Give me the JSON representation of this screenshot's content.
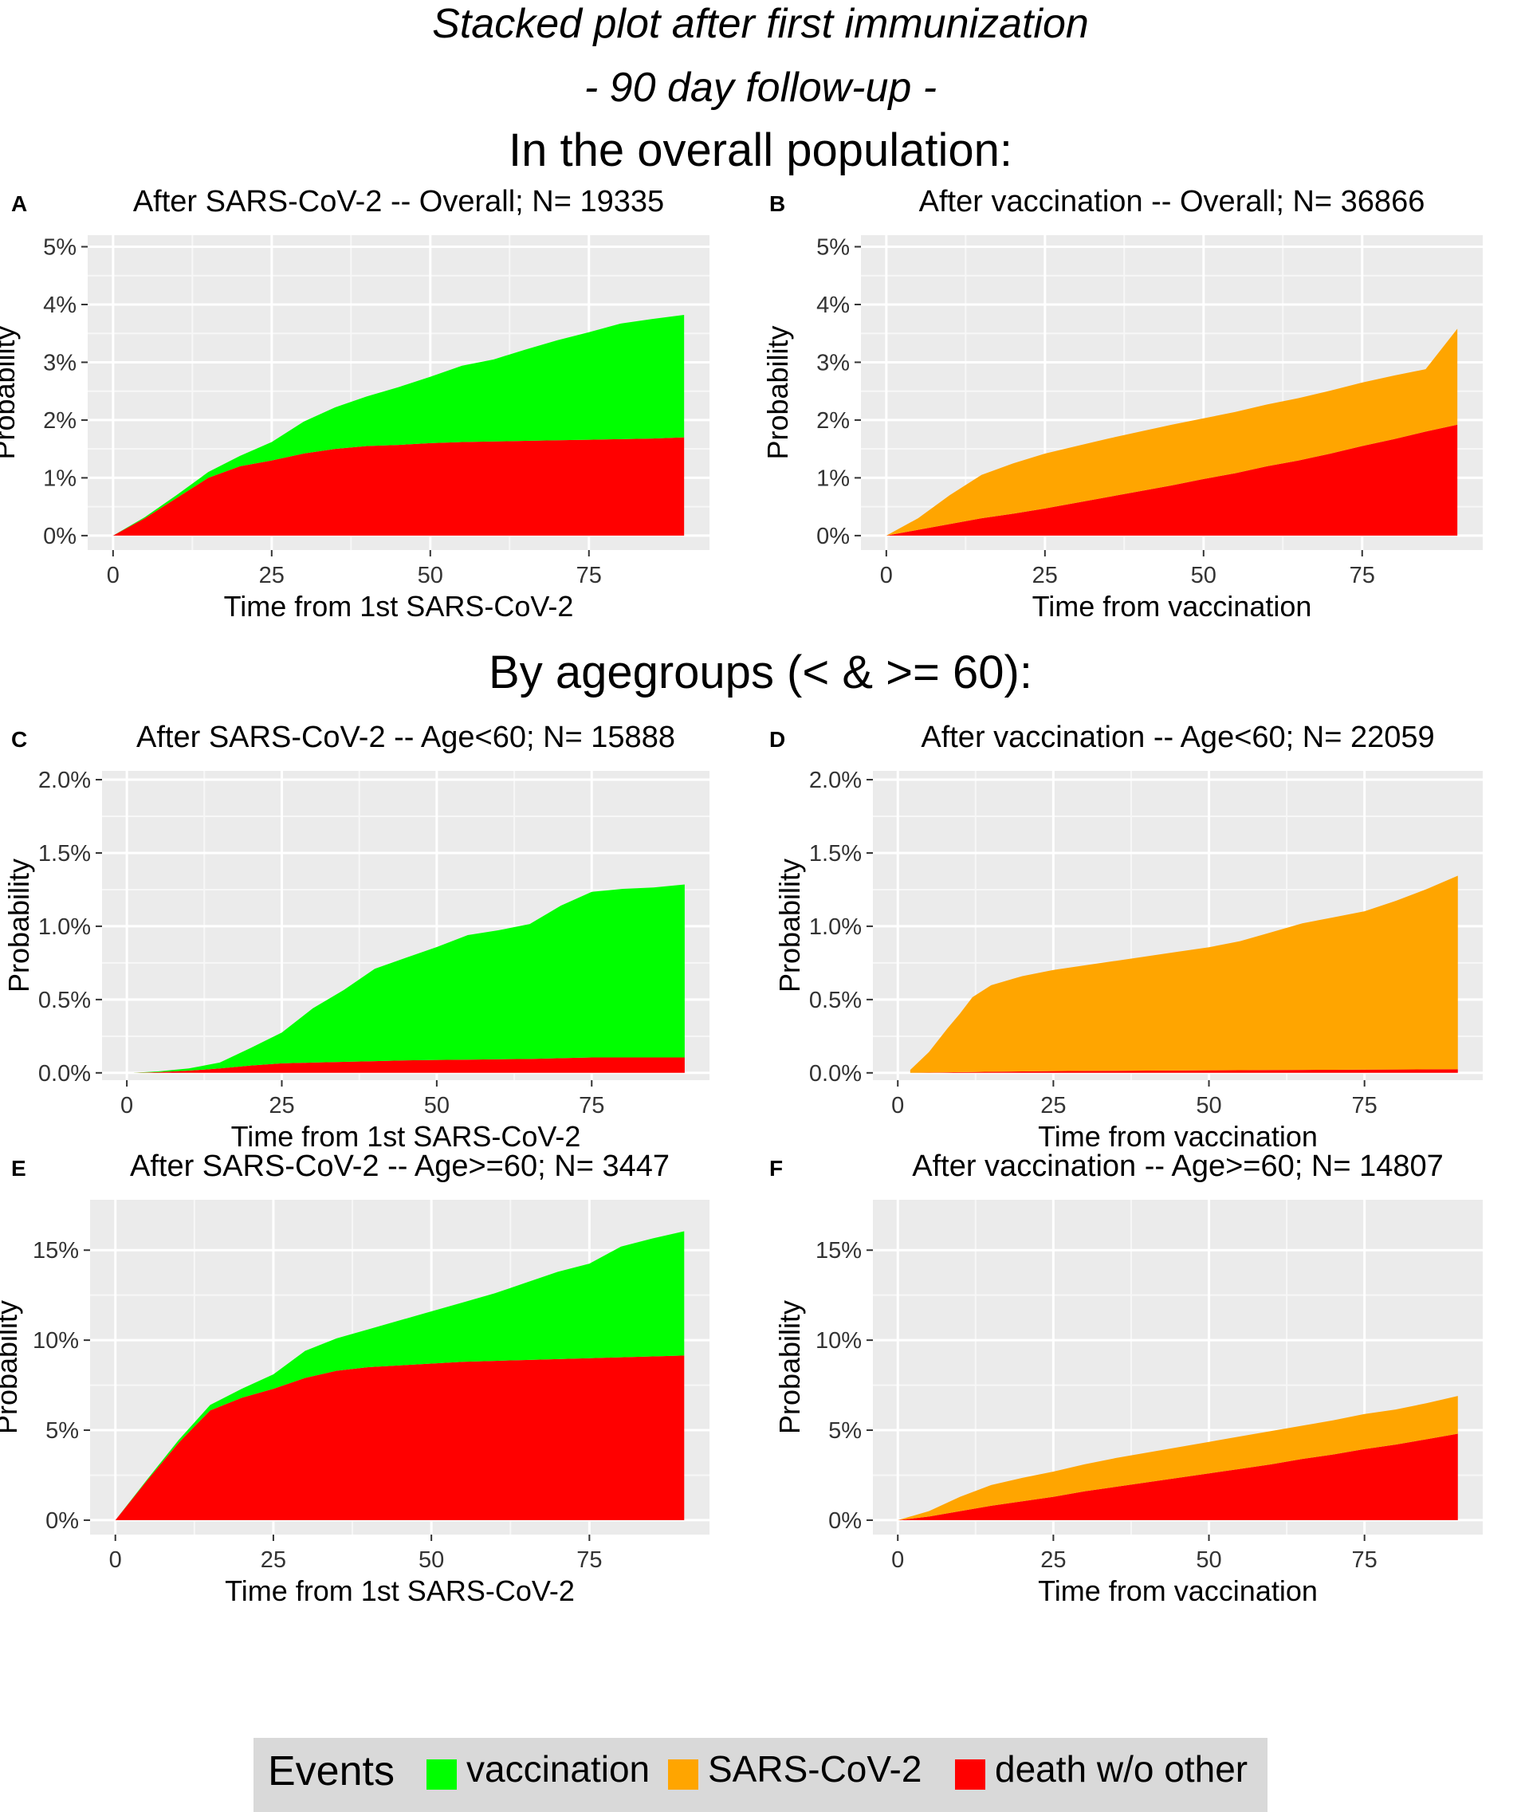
{
  "header": {
    "title": "Stacked plot after first immunization",
    "subtitle": "- 90 day follow-up -",
    "section_overall": "In the overall population:",
    "section_age": "By agegroups (< & >= 60):"
  },
  "colors": {
    "vaccination": "#00ff00",
    "sars_cov_2": "#ffa500",
    "death": "#ff0000",
    "panel_bg": "#ebebeb",
    "grid": "#ffffff"
  },
  "legend": {
    "title": "Events",
    "items": [
      {
        "label": "vaccination",
        "color": "#00ff00"
      },
      {
        "label": "SARS-CoV-2",
        "color": "#ffa500"
      },
      {
        "label": "death w/o other",
        "color": "#ff0000"
      }
    ]
  },
  "chart_data": [
    {
      "type": "area",
      "stacked": true,
      "panel": "A",
      "title": "After SARS-CoV-2 -- Overall; N= 19335",
      "xlabel": "Time from 1st SARS-CoV-2",
      "ylabel": "Probability",
      "xlim": [
        -4,
        94
      ],
      "ylim": [
        -0.25,
        5.2
      ],
      "xticks": [
        0,
        25,
        50,
        75
      ],
      "yticks": [
        0,
        1,
        2,
        3,
        4,
        5
      ],
      "ytick_labels": [
        "0%",
        "1%",
        "2%",
        "3%",
        "4%",
        "5%"
      ],
      "x": [
        0,
        5,
        10,
        15,
        20,
        25,
        30,
        35,
        40,
        45,
        50,
        55,
        60,
        65,
        70,
        75,
        80,
        85,
        90
      ],
      "series": [
        {
          "name": "death w/o other",
          "color": "#ff0000",
          "values": [
            0,
            0.3,
            0.65,
            1.0,
            1.2,
            1.3,
            1.42,
            1.5,
            1.55,
            1.57,
            1.6,
            1.62,
            1.63,
            1.64,
            1.65,
            1.66,
            1.67,
            1.68,
            1.7
          ]
        },
        {
          "name": "vaccination",
          "color": "#00ff00",
          "values": [
            0,
            0.02,
            0.05,
            0.1,
            0.18,
            0.32,
            0.55,
            0.72,
            0.86,
            1.0,
            1.15,
            1.32,
            1.42,
            1.58,
            1.73,
            1.86,
            2.0,
            2.07,
            2.12
          ]
        }
      ]
    },
    {
      "type": "area",
      "stacked": true,
      "panel": "B",
      "title": "After vaccination -- Overall; N= 36866",
      "xlabel": "Time from vaccination",
      "ylabel": "Probability",
      "xlim": [
        -4,
        94
      ],
      "ylim": [
        -0.25,
        5.2
      ],
      "xticks": [
        0,
        25,
        50,
        75
      ],
      "yticks": [
        0,
        1,
        2,
        3,
        4,
        5
      ],
      "ytick_labels": [
        "0%",
        "1%",
        "2%",
        "3%",
        "4%",
        "5%"
      ],
      "x": [
        0,
        5,
        10,
        15,
        20,
        25,
        30,
        35,
        40,
        45,
        50,
        55,
        60,
        65,
        70,
        75,
        80,
        85,
        90
      ],
      "series": [
        {
          "name": "death w/o other",
          "color": "#ff0000",
          "values": [
            0,
            0.1,
            0.2,
            0.3,
            0.38,
            0.47,
            0.57,
            0.67,
            0.77,
            0.87,
            0.98,
            1.08,
            1.2,
            1.3,
            1.42,
            1.55,
            1.67,
            1.8,
            1.92
          ]
        },
        {
          "name": "SARS-CoV-2",
          "color": "#ffa500",
          "values": [
            0,
            0.2,
            0.5,
            0.75,
            0.87,
            0.95,
            0.98,
            1.01,
            1.03,
            1.05,
            1.05,
            1.06,
            1.07,
            1.08,
            1.09,
            1.1,
            1.1,
            1.08,
            1.66
          ]
        }
      ]
    },
    {
      "type": "area",
      "stacked": true,
      "panel": "C",
      "title": "After SARS-CoV-2 -- Age<60; N= 15888",
      "xlabel": "Time from 1st SARS-CoV-2",
      "ylabel": "Probability",
      "xlim": [
        -4,
        94
      ],
      "ylim": [
        -0.05,
        2.06
      ],
      "xticks": [
        0,
        25,
        50,
        75
      ],
      "yticks": [
        0,
        0.5,
        1,
        1.5,
        2
      ],
      "ytick_labels": [
        "0.0%",
        "0.5%",
        "1.0%",
        "1.5%",
        "2.0%"
      ],
      "x": [
        1,
        5,
        10,
        15,
        20,
        25,
        30,
        35,
        40,
        45,
        50,
        55,
        60,
        65,
        70,
        75,
        80,
        85,
        90
      ],
      "series": [
        {
          "name": "death w/o other",
          "color": "#ff0000",
          "values": [
            0,
            0.005,
            0.015,
            0.03,
            0.05,
            0.065,
            0.07,
            0.075,
            0.08,
            0.085,
            0.088,
            0.09,
            0.093,
            0.095,
            0.1,
            0.105,
            0.105,
            0.105,
            0.105
          ]
        },
        {
          "name": "vaccination",
          "color": "#00ff00",
          "values": [
            0,
            0.005,
            0.015,
            0.04,
            0.12,
            0.21,
            0.37,
            0.49,
            0.63,
            0.7,
            0.77,
            0.85,
            0.88,
            0.92,
            1.04,
            1.13,
            1.15,
            1.16,
            1.18
          ]
        }
      ]
    },
    {
      "type": "area",
      "stacked": true,
      "panel": "D",
      "title": "After vaccination -- Age<60; N= 22059",
      "xlabel": "Time from vaccination",
      "ylabel": "Probability",
      "xlim": [
        -4,
        94
      ],
      "ylim": [
        -0.05,
        2.06
      ],
      "xticks": [
        0,
        25,
        50,
        75
      ],
      "yticks": [
        0,
        0.5,
        1,
        1.5,
        2
      ],
      "ytick_labels": [
        "0.0%",
        "0.5%",
        "1.0%",
        "1.5%",
        "2.0%"
      ],
      "x": [
        2,
        5,
        8,
        10,
        12,
        15,
        20,
        25,
        30,
        35,
        40,
        45,
        50,
        55,
        60,
        65,
        70,
        75,
        80,
        85,
        90
      ],
      "series": [
        {
          "name": "death w/o other",
          "color": "#ff0000",
          "values": [
            0,
            0.002,
            0.004,
            0.005,
            0.006,
            0.008,
            0.01,
            0.012,
            0.013,
            0.014,
            0.015,
            0.016,
            0.017,
            0.018,
            0.019,
            0.02,
            0.021,
            0.022,
            0.023,
            0.024,
            0.025
          ]
        },
        {
          "name": "SARS-CoV-2",
          "color": "#ffa500",
          "values": [
            0.02,
            0.14,
            0.3,
            0.4,
            0.51,
            0.59,
            0.65,
            0.69,
            0.72,
            0.75,
            0.78,
            0.81,
            0.84,
            0.88,
            0.94,
            1.0,
            1.04,
            1.08,
            1.15,
            1.23,
            1.32
          ]
        }
      ]
    },
    {
      "type": "area",
      "stacked": true,
      "panel": "E",
      "title": "After SARS-CoV-2 -- Age>=60; N= 3447",
      "xlabel": "Time from 1st SARS-CoV-2",
      "ylabel": "Probability",
      "xlim": [
        -4,
        94
      ],
      "ylim": [
        -0.8,
        17.8
      ],
      "xticks": [
        0,
        25,
        50,
        75
      ],
      "yticks": [
        0,
        5,
        10,
        15
      ],
      "ytick_labels": [
        "0%",
        "5%",
        "10%",
        "15%"
      ],
      "x": [
        0,
        5,
        10,
        15,
        20,
        25,
        30,
        35,
        40,
        45,
        50,
        55,
        60,
        65,
        70,
        75,
        80,
        85,
        90
      ],
      "series": [
        {
          "name": "death w/o other",
          "color": "#ff0000",
          "values": [
            0,
            2.2,
            4.3,
            6.1,
            6.8,
            7.3,
            7.9,
            8.3,
            8.5,
            8.6,
            8.7,
            8.8,
            8.85,
            8.9,
            8.95,
            9.0,
            9.05,
            9.1,
            9.15
          ]
        },
        {
          "name": "vaccination",
          "color": "#00ff00",
          "values": [
            0,
            0.05,
            0.15,
            0.3,
            0.5,
            0.8,
            1.5,
            1.8,
            2.1,
            2.5,
            2.9,
            3.3,
            3.75,
            4.3,
            4.85,
            5.25,
            6.15,
            6.55,
            6.9
          ]
        }
      ]
    },
    {
      "type": "area",
      "stacked": true,
      "panel": "F",
      "title": "After vaccination -- Age>=60; N= 14807",
      "xlabel": "Time from vaccination",
      "ylabel": "Probability",
      "xlim": [
        -4,
        94
      ],
      "ylim": [
        -0.8,
        17.8
      ],
      "xticks": [
        0,
        25,
        50,
        75
      ],
      "yticks": [
        0,
        5,
        10,
        15
      ],
      "ytick_labels": [
        "0%",
        "5%",
        "10%",
        "15%"
      ],
      "x": [
        0,
        5,
        10,
        15,
        20,
        25,
        30,
        35,
        40,
        45,
        50,
        55,
        60,
        65,
        70,
        75,
        80,
        85,
        90
      ],
      "series": [
        {
          "name": "death w/o other",
          "color": "#ff0000",
          "values": [
            0,
            0.2,
            0.5,
            0.8,
            1.05,
            1.3,
            1.6,
            1.85,
            2.1,
            2.35,
            2.6,
            2.85,
            3.1,
            3.4,
            3.65,
            3.95,
            4.2,
            4.5,
            4.8
          ]
        },
        {
          "name": "SARS-CoV-2",
          "color": "#ffa500",
          "values": [
            0,
            0.3,
            0.8,
            1.15,
            1.3,
            1.4,
            1.5,
            1.6,
            1.65,
            1.7,
            1.75,
            1.8,
            1.85,
            1.85,
            1.9,
            1.95,
            1.95,
            2.0,
            2.1
          ]
        }
      ]
    }
  ]
}
